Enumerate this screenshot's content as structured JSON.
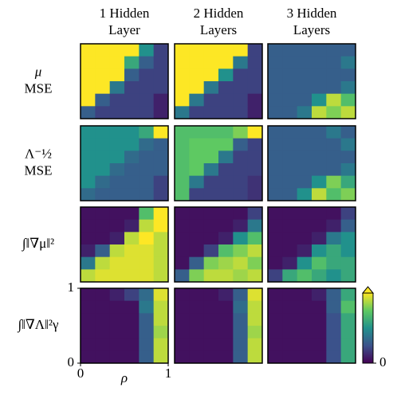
{
  "chart_data": {
    "type": "heatmap",
    "column_titles": [
      [
        "1 Hidden",
        "Layer"
      ],
      [
        "2 Hidden",
        "Layers"
      ],
      [
        "3 Hidden",
        "Layers"
      ]
    ],
    "row_labels": [
      [
        "μ",
        "MSE"
      ],
      [
        "Λ⁻½",
        "MSE"
      ],
      [
        "∫‖∇μ‖²"
      ],
      [
        "∫‖∇Λ‖²γ"
      ]
    ],
    "x_label": "ρ",
    "xlim": [
      0,
      1
    ],
    "ylim": [
      0,
      1
    ],
    "xticks": [
      0,
      1
    ],
    "yticks": [
      0,
      1
    ],
    "colormap": "viridis",
    "clim": [
      0,
      1
    ],
    "colorbar_ticks": [
      0
    ],
    "panels": [
      [
        [
          [
            1,
            1,
            1,
            1,
            0.5,
            0.2
          ],
          [
            1,
            1,
            1,
            0.6,
            0.3,
            0.2
          ],
          [
            1,
            1,
            1,
            0.3,
            0.2,
            0.2
          ],
          [
            1,
            1,
            0.4,
            0.2,
            0.2,
            0.2
          ],
          [
            1,
            0.3,
            0.2,
            0.2,
            0.2,
            0.1
          ],
          [
            0.3,
            0.2,
            0.2,
            0.2,
            0.2,
            0.1
          ]
        ],
        [
          [
            1,
            1,
            1,
            1,
            1,
            0.2
          ],
          [
            1,
            1,
            1,
            1,
            0.4,
            0.2
          ],
          [
            1,
            1,
            1,
            0.5,
            0.2,
            0.2
          ],
          [
            1,
            1,
            0.4,
            0.2,
            0.2,
            0.2
          ],
          [
            1,
            0.4,
            0.2,
            0.2,
            0.2,
            0.1
          ],
          [
            0.4,
            0.2,
            0.2,
            0.2,
            0.2,
            0.1
          ]
        ],
        [
          [
            0.3,
            0.3,
            0.3,
            0.3,
            0.3,
            0.3
          ],
          [
            0.3,
            0.3,
            0.3,
            0.3,
            0.3,
            0.4
          ],
          [
            0.3,
            0.3,
            0.3,
            0.3,
            0.3,
            0.3
          ],
          [
            0.3,
            0.3,
            0.3,
            0.3,
            0.3,
            0.4
          ],
          [
            0.3,
            0.3,
            0.3,
            0.5,
            0.9,
            0.7
          ],
          [
            0.3,
            0.3,
            0.4,
            0.9,
            0.8,
            0.9
          ]
        ]
      ],
      [
        [
          [
            0.5,
            0.5,
            0.5,
            0.5,
            0.6,
            1
          ],
          [
            0.5,
            0.5,
            0.5,
            0.5,
            0.35,
            0.3
          ],
          [
            0.5,
            0.5,
            0.5,
            0.35,
            0.3,
            0.3
          ],
          [
            0.5,
            0.5,
            0.35,
            0.3,
            0.3,
            0.3
          ],
          [
            0.5,
            0.35,
            0.3,
            0.3,
            0.3,
            0.2
          ],
          [
            0.35,
            0.3,
            0.3,
            0.3,
            0.3,
            0.2
          ]
        ],
        [
          [
            0.7,
            0.7,
            0.7,
            0.7,
            0.8,
            1
          ],
          [
            0.7,
            0.75,
            0.75,
            0.75,
            0.3,
            0.2
          ],
          [
            0.7,
            0.75,
            0.75,
            0.4,
            0.2,
            0.2
          ],
          [
            0.7,
            0.75,
            0.4,
            0.2,
            0.2,
            0.2
          ],
          [
            0.7,
            0.4,
            0.2,
            0.2,
            0.2,
            0.15
          ],
          [
            0.7,
            0.2,
            0.2,
            0.2,
            0.2,
            0.15
          ]
        ],
        [
          [
            0.3,
            0.3,
            0.3,
            0.3,
            0.4,
            0.3
          ],
          [
            0.3,
            0.3,
            0.3,
            0.3,
            0.3,
            0.4
          ],
          [
            0.3,
            0.3,
            0.3,
            0.3,
            0.3,
            0.3
          ],
          [
            0.3,
            0.3,
            0.3,
            0.3,
            0.3,
            0.4
          ],
          [
            0.3,
            0.3,
            0.3,
            0.5,
            0.8,
            0.6
          ],
          [
            0.3,
            0.3,
            0.5,
            0.9,
            0.7,
            0.8
          ]
        ]
      ],
      [
        [
          [
            0.05,
            0.05,
            0.05,
            0.05,
            0.7,
            1
          ],
          [
            0.05,
            0.05,
            0.05,
            0.1,
            0.9,
            1
          ],
          [
            0.05,
            0.05,
            0.1,
            0.9,
            1,
            0.9
          ],
          [
            0.1,
            0.3,
            0.9,
            0.95,
            0.95,
            0.9
          ],
          [
            0.4,
            0.9,
            0.95,
            0.95,
            0.95,
            0.9
          ],
          [
            0.9,
            0.95,
            0.95,
            0.95,
            0.95,
            0.9
          ]
        ],
        [
          [
            0.05,
            0.05,
            0.05,
            0.05,
            0.05,
            0.2
          ],
          [
            0.05,
            0.05,
            0.05,
            0.05,
            0.1,
            0.4
          ],
          [
            0.05,
            0.05,
            0.05,
            0.1,
            0.5,
            0.7
          ],
          [
            0.05,
            0.05,
            0.2,
            0.7,
            0.8,
            0.9
          ],
          [
            0.05,
            0.3,
            0.8,
            0.85,
            0.9,
            0.8
          ],
          [
            0.3,
            0.8,
            0.9,
            0.9,
            0.85,
            0.9
          ]
        ],
        [
          [
            0.05,
            0.05,
            0.05,
            0.05,
            0.05,
            0.2
          ],
          [
            0.05,
            0.05,
            0.05,
            0.05,
            0.1,
            0.3
          ],
          [
            0.05,
            0.05,
            0.05,
            0.1,
            0.4,
            0.5
          ],
          [
            0.05,
            0.05,
            0.1,
            0.5,
            0.6,
            0.5
          ],
          [
            0.05,
            0.1,
            0.5,
            0.7,
            0.6,
            0.6
          ],
          [
            0.2,
            0.6,
            0.7,
            0.6,
            0.5,
            0.6
          ]
        ]
      ],
      [
        [
          [
            0.05,
            0.05,
            0.1,
            0.2,
            0.35,
            0.95
          ],
          [
            0.05,
            0.05,
            0.05,
            0.05,
            0.4,
            0.9
          ],
          [
            0.05,
            0.05,
            0.05,
            0.05,
            0.3,
            0.9
          ],
          [
            0.05,
            0.05,
            0.05,
            0.05,
            0.3,
            0.85
          ],
          [
            0.05,
            0.05,
            0.05,
            0.05,
            0.3,
            0.9
          ],
          [
            0.05,
            0.05,
            0.05,
            0.05,
            0.3,
            0.9
          ]
        ],
        [
          [
            0.05,
            0.05,
            0.05,
            0.1,
            0.3,
            0.95
          ],
          [
            0.05,
            0.05,
            0.05,
            0.05,
            0.35,
            0.9
          ],
          [
            0.05,
            0.05,
            0.05,
            0.05,
            0.3,
            0.9
          ],
          [
            0.05,
            0.05,
            0.05,
            0.05,
            0.3,
            0.85
          ],
          [
            0.05,
            0.05,
            0.05,
            0.05,
            0.3,
            0.9
          ],
          [
            0.05,
            0.05,
            0.05,
            0.05,
            0.3,
            0.9
          ]
        ],
        [
          [
            0.05,
            0.05,
            0.05,
            0.1,
            0.3,
            0.6
          ],
          [
            0.05,
            0.05,
            0.05,
            0.05,
            0.3,
            0.7
          ],
          [
            0.05,
            0.05,
            0.05,
            0.05,
            0.25,
            0.6
          ],
          [
            0.05,
            0.05,
            0.05,
            0.05,
            0.25,
            0.6
          ],
          [
            0.05,
            0.05,
            0.05,
            0.05,
            0.25,
            0.6
          ],
          [
            0.05,
            0.05,
            0.05,
            0.05,
            0.25,
            0.6
          ]
        ]
      ]
    ]
  }
}
